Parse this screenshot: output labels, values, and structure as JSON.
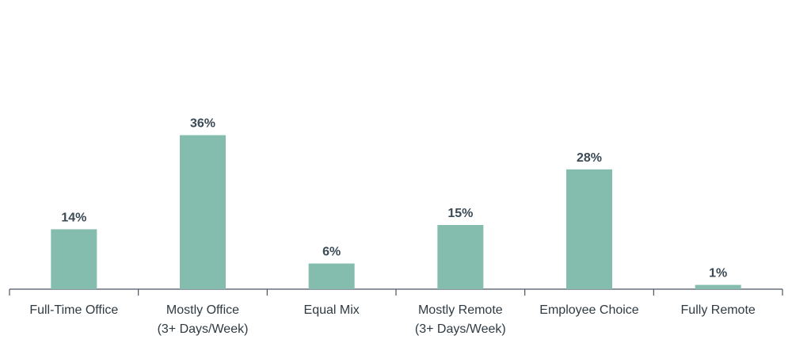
{
  "chart_data": {
    "type": "bar",
    "categories": [
      [
        "Full-Time Office"
      ],
      [
        "Mostly Office",
        "(3+ Days/Week)"
      ],
      [
        "Equal Mix"
      ],
      [
        "Mostly Remote",
        "(3+ Days/Week)"
      ],
      [
        "Employee Choice"
      ],
      [
        "Fully Remote"
      ]
    ],
    "values": [
      14,
      36,
      6,
      15,
      28,
      1
    ],
    "value_labels": [
      "14%",
      "36%",
      "6%",
      "15%",
      "28%",
      "1%"
    ],
    "ylim": [
      0,
      60
    ],
    "grid": false,
    "legend": "none",
    "bar_color": "#84bcae"
  }
}
